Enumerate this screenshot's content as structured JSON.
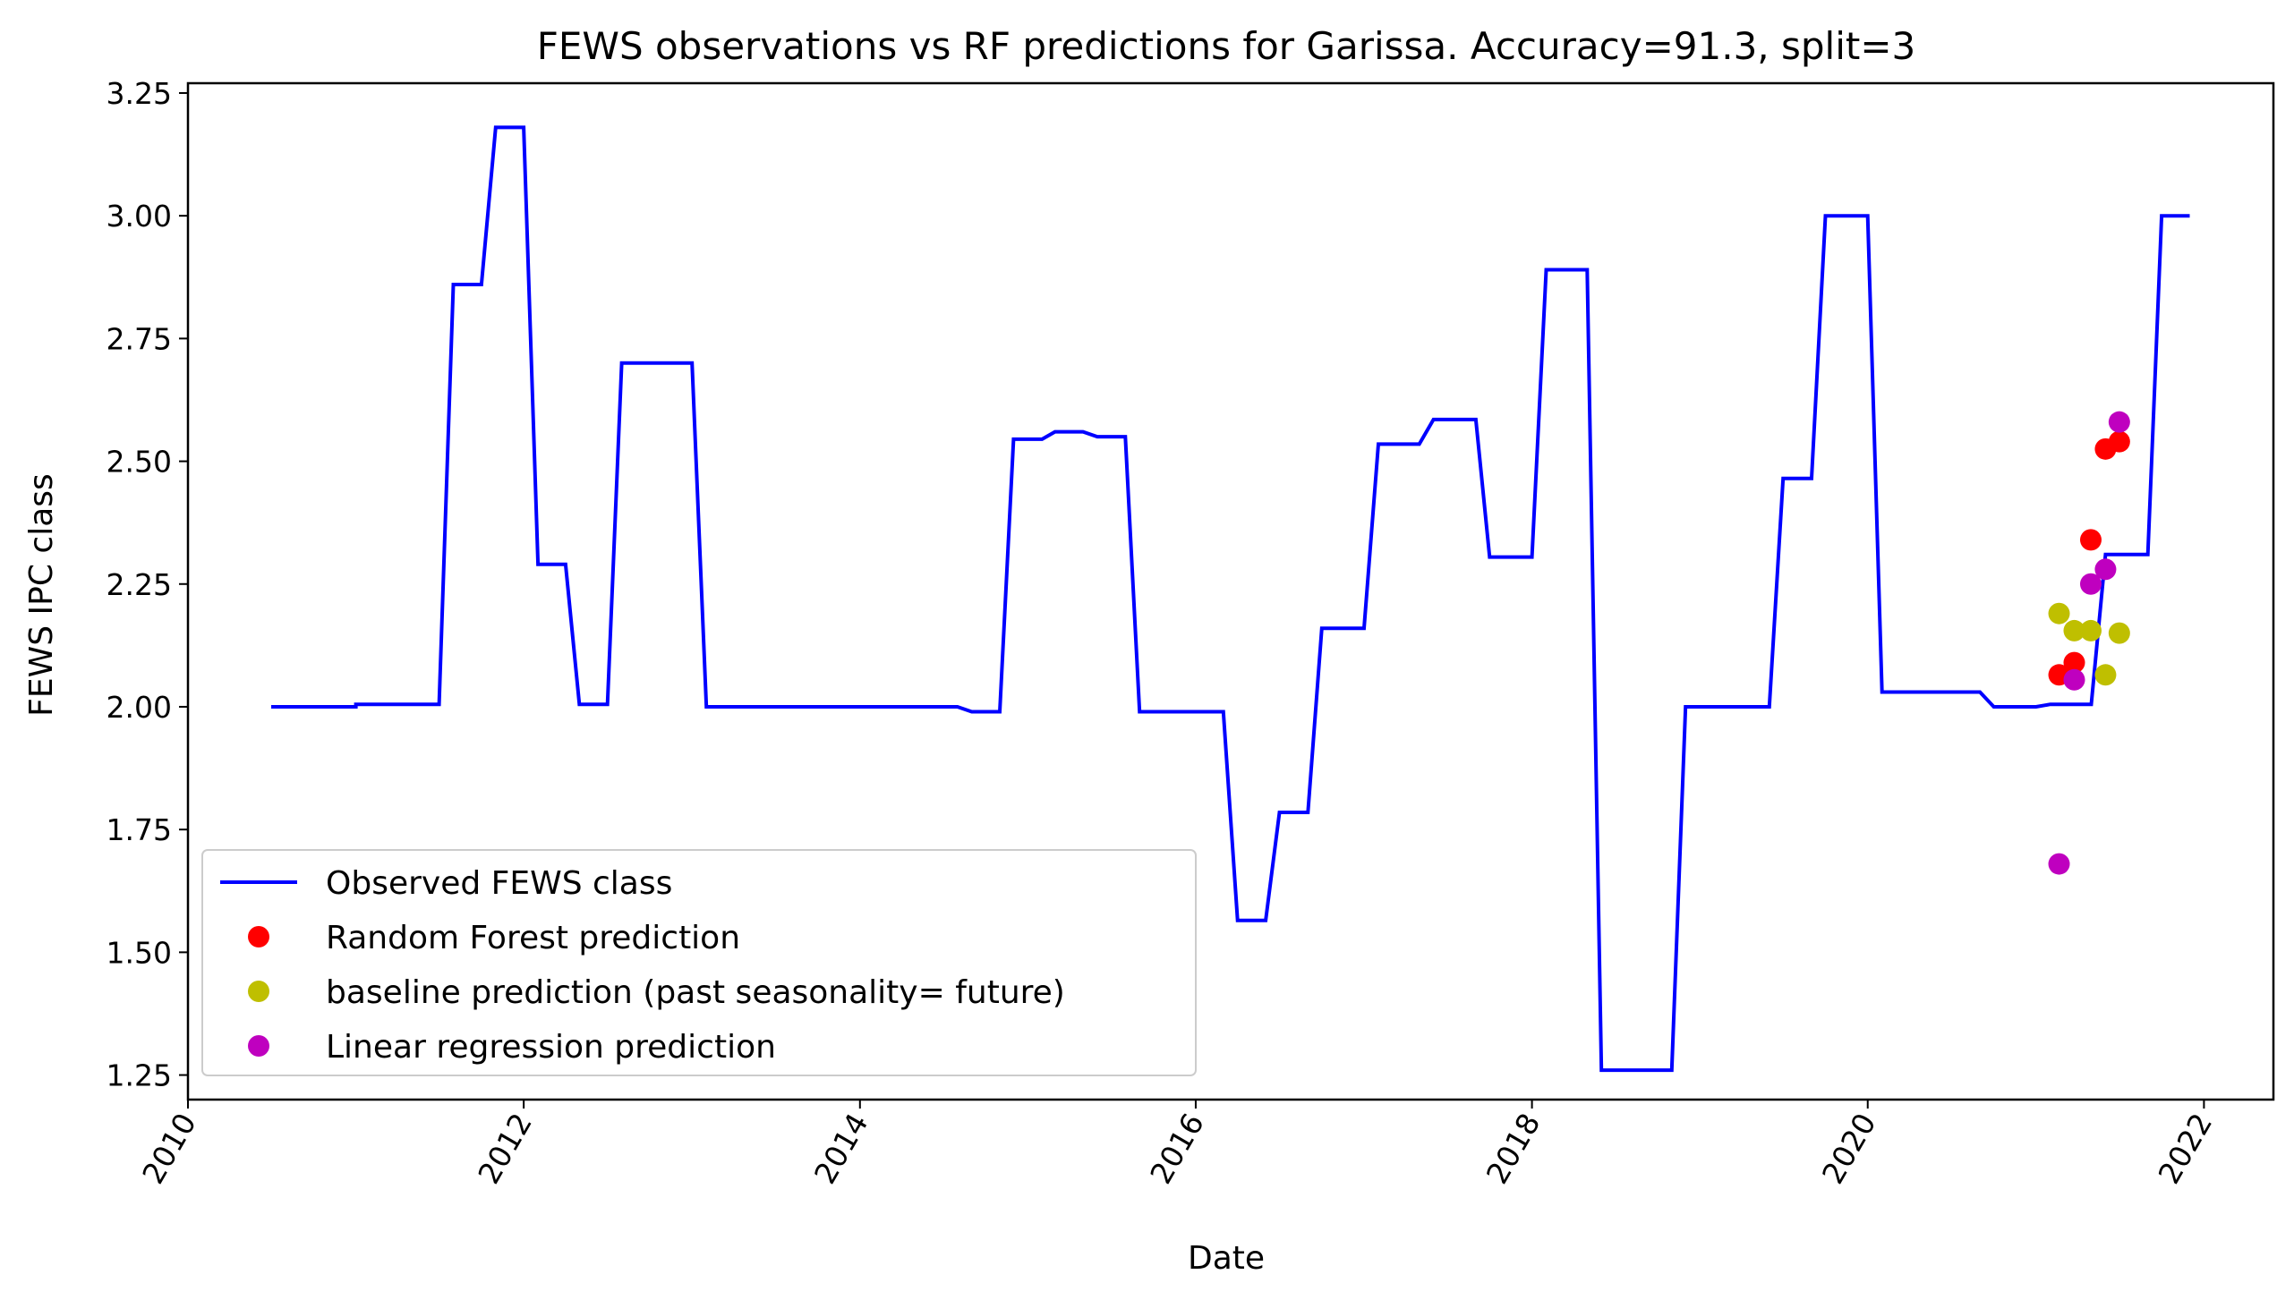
{
  "chart_data": {
    "type": "line",
    "title": "FEWS observations vs RF predictions for Garissa. Accuracy=91.3, split=3",
    "xlabel": "Date",
    "ylabel": "FEWS IPC class",
    "xlim": [
      "2010-01-01",
      "2022-06-01"
    ],
    "ylim": [
      1.2,
      3.27
    ],
    "x_ticks": [
      "2010",
      "2012",
      "2014",
      "2016",
      "2018",
      "2020",
      "2022"
    ],
    "y_ticks": [
      "1.25",
      "1.50",
      "1.75",
      "2.00",
      "2.25",
      "2.50",
      "2.75",
      "3.00",
      "3.25"
    ],
    "legend_position": "lower-left",
    "series": [
      {
        "name": "Observed FEWS class",
        "style": "line",
        "color": "#0000ff",
        "points": [
          [
            "2010-07-01",
            2.0
          ],
          [
            "2011-01-01",
            2.0
          ],
          [
            "2011-01-01",
            2.005
          ],
          [
            "2011-07-01",
            2.005
          ],
          [
            "2011-08-01",
            2.86
          ],
          [
            "2011-10-01",
            2.86
          ],
          [
            "2011-11-01",
            3.18
          ],
          [
            "2012-01-01",
            3.18
          ],
          [
            "2012-02-01",
            2.29
          ],
          [
            "2012-04-01",
            2.29
          ],
          [
            "2012-05-01",
            2.005
          ],
          [
            "2012-07-01",
            2.005
          ],
          [
            "2012-08-01",
            2.7
          ],
          [
            "2013-01-01",
            2.7
          ],
          [
            "2013-02-01",
            2.0
          ],
          [
            "2014-08-01",
            2.0
          ],
          [
            "2014-09-01",
            1.99
          ],
          [
            "2014-11-01",
            1.99
          ],
          [
            "2014-12-01",
            2.545
          ],
          [
            "2015-02-01",
            2.545
          ],
          [
            "2015-03-01",
            2.56
          ],
          [
            "2015-05-01",
            2.56
          ],
          [
            "2015-06-01",
            2.55
          ],
          [
            "2015-08-01",
            2.55
          ],
          [
            "2015-09-01",
            1.99
          ],
          [
            "2016-03-01",
            1.99
          ],
          [
            "2016-04-01",
            1.565
          ],
          [
            "2016-06-01",
            1.565
          ],
          [
            "2016-07-01",
            1.785
          ],
          [
            "2016-09-01",
            1.785
          ],
          [
            "2016-10-01",
            2.16
          ],
          [
            "2017-01-01",
            2.16
          ],
          [
            "2017-02-01",
            2.535
          ],
          [
            "2017-05-01",
            2.535
          ],
          [
            "2017-06-01",
            2.585
          ],
          [
            "2017-09-01",
            2.585
          ],
          [
            "2017-10-01",
            2.305
          ],
          [
            "2018-01-01",
            2.305
          ],
          [
            "2018-02-01",
            2.89
          ],
          [
            "2018-05-01",
            2.89
          ],
          [
            "2018-06-01",
            1.26
          ],
          [
            "2018-11-01",
            1.26
          ],
          [
            "2018-12-01",
            2.0
          ],
          [
            "2019-06-01",
            2.0
          ],
          [
            "2019-07-01",
            2.465
          ],
          [
            "2019-09-01",
            2.465
          ],
          [
            "2019-10-01",
            3.0
          ],
          [
            "2020-01-01",
            3.0
          ],
          [
            "2020-02-01",
            2.03
          ],
          [
            "2020-09-01",
            2.03
          ],
          [
            "2020-10-01",
            2.0
          ],
          [
            "2021-01-01",
            2.0
          ],
          [
            "2021-02-01",
            2.005
          ],
          [
            "2021-05-01",
            2.005
          ],
          [
            "2021-06-01",
            2.31
          ],
          [
            "2021-09-01",
            2.31
          ],
          [
            "2021-10-01",
            3.0
          ],
          [
            "2021-12-01",
            3.0
          ]
        ]
      },
      {
        "name": "Random Forest prediction",
        "style": "marker",
        "color": "#ff0000",
        "points": [
          [
            "2021-02-20",
            2.065
          ],
          [
            "2021-03-25",
            2.09
          ],
          [
            "2021-04-30",
            2.34
          ],
          [
            "2021-06-01",
            2.525
          ],
          [
            "2021-07-01",
            2.54
          ]
        ]
      },
      {
        "name": "baseline prediction (past seasonality= future)",
        "style": "marker",
        "color": "#bfbf00",
        "points": [
          [
            "2021-02-20",
            2.19
          ],
          [
            "2021-03-25",
            2.155
          ],
          [
            "2021-04-30",
            2.155
          ],
          [
            "2021-06-01",
            2.065
          ],
          [
            "2021-07-01",
            2.15
          ]
        ]
      },
      {
        "name": "Linear regression prediction",
        "style": "marker",
        "color": "#bf00bf",
        "points": [
          [
            "2021-02-20",
            1.68
          ],
          [
            "2021-03-25",
            2.055
          ],
          [
            "2021-04-30",
            2.25
          ],
          [
            "2021-06-01",
            2.28
          ],
          [
            "2021-07-01",
            2.58
          ]
        ]
      }
    ]
  }
}
